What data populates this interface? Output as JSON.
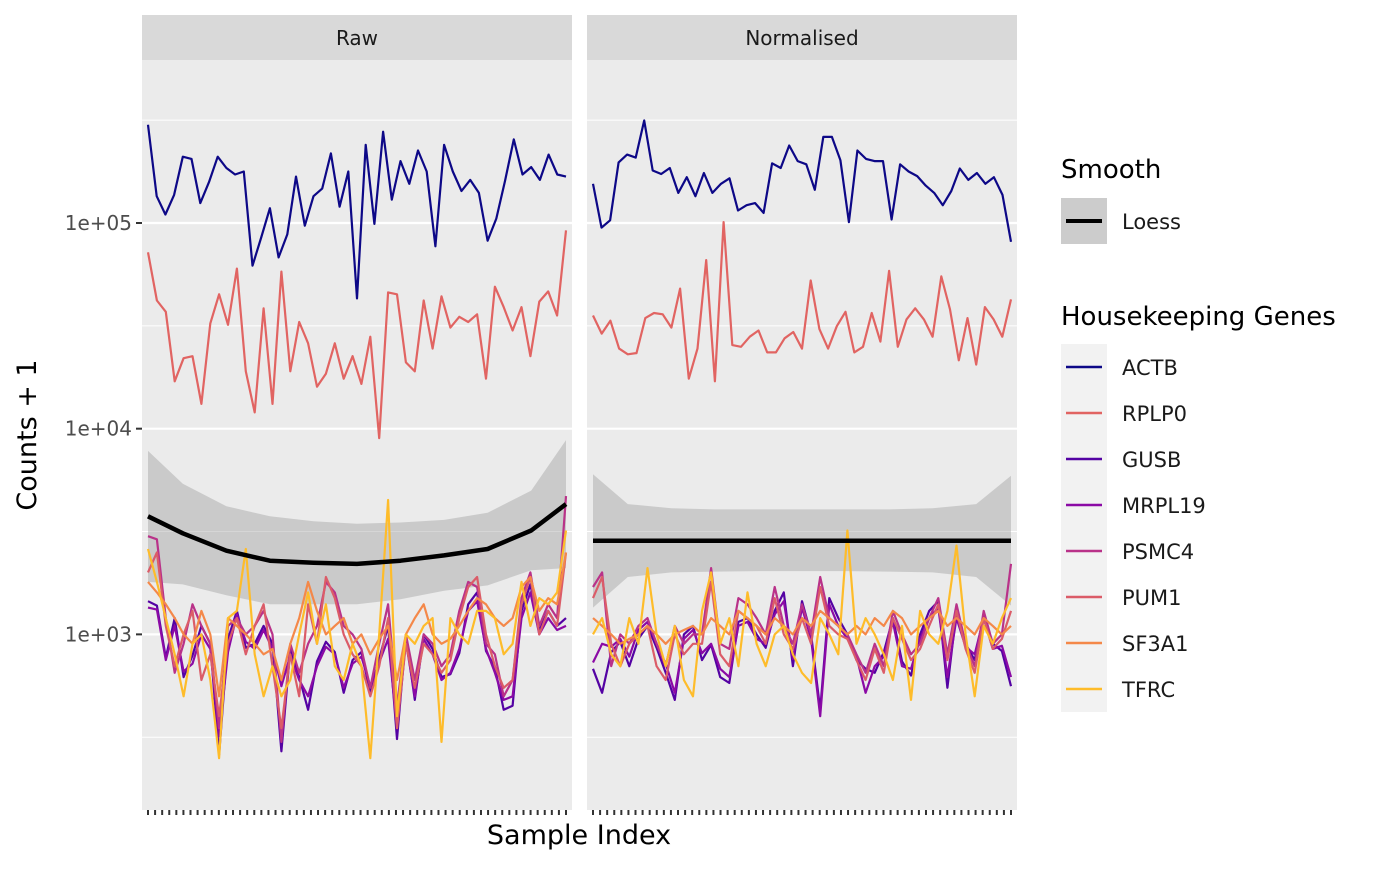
{
  "chart_data": {
    "type": "line",
    "facets": [
      "Raw",
      "Normalised"
    ],
    "xlabel": "Sample Index",
    "ylabel": "Counts + 1",
    "y_scale": "log10",
    "ylim": [
      140,
      620000
    ],
    "y_ticks": [
      1000,
      10000,
      100000
    ],
    "y_tick_labels": [
      "1e+03",
      "1e+04",
      "1e+05"
    ],
    "x_range": [
      1,
      60
    ],
    "grid": true,
    "legend_position": "right",
    "smooth_legend": {
      "title": "Smooth",
      "entries": [
        {
          "label": "Loess",
          "color": "#000000"
        }
      ]
    },
    "genes_legend": {
      "title": "Housekeeping Genes"
    },
    "series": [
      {
        "name": "ACTB",
        "color": "#0D0887",
        "raw": [
          300000,
          135000,
          110000,
          137000,
          210000,
          205000,
          125000,
          158000,
          210000,
          185000,
          172000,
          178000,
          62000,
          85000,
          118000,
          68000,
          88000,
          168000,
          97000,
          135000,
          147000,
          218000,
          120000,
          178000,
          43000,
          240000,
          99000,
          278000,
          130000,
          200000,
          155000,
          225000,
          178000,
          77000,
          240000,
          178000,
          143000,
          162000,
          140000,
          82000,
          105000,
          160000,
          255000,
          172000,
          187000,
          162000,
          215000,
          172000,
          168000
        ],
        "normalised": [
          155000,
          95000,
          103000,
          197000,
          215000,
          208000,
          315000,
          180000,
          173000,
          185000,
          140000,
          167000,
          135000,
          175000,
          140000,
          155000,
          165000,
          115000,
          122000,
          125000,
          112000,
          195000,
          185000,
          238000,
          200000,
          193000,
          145000,
          262000,
          262000,
          202000,
          101000,
          225000,
          205000,
          200000,
          200000,
          104000,
          193000,
          178000,
          169000,
          152000,
          140000,
          122000,
          143000,
          184000,
          162000,
          175000,
          155000,
          167000,
          137000,
          81000
        ]
      },
      {
        "name": "RPLP0",
        "color": "#E16462",
        "raw": [
          72000,
          42000,
          37000,
          17000,
          22000,
          22500,
          13200,
          32500,
          45000,
          32000,
          60000,
          19000,
          12000,
          38500,
          13200,
          58000,
          19000,
          33000,
          26000,
          16000,
          18500,
          26000,
          17500,
          22500,
          16500,
          28000,
          9000,
          46000,
          45000,
          21000,
          19000,
          42000,
          24500,
          44000,
          31000,
          35000,
          33000,
          36000,
          17500,
          49000,
          39000,
          30000,
          39000,
          22500,
          41500,
          46500,
          35500,
          92000
        ],
        "normalised": [
          35500,
          29000,
          33500,
          24500,
          23000,
          23300,
          34500,
          36500,
          36000,
          31000,
          48000,
          17500,
          24500,
          66000,
          17000,
          101000,
          25500,
          25000,
          28000,
          30000,
          23500,
          23500,
          27500,
          29500,
          24500,
          52500,
          30500,
          24500,
          31500,
          37000,
          23500,
          25000,
          36500,
          26500,
          58500,
          25000,
          34000,
          38500,
          34000,
          28000,
          55000,
          38000,
          21500,
          34500,
          20500,
          39000,
          34000,
          28000,
          42500
        ]
      },
      {
        "name": "GUSB",
        "color": "#5402A3",
        "raw": [
          1450,
          1380,
          770,
          1200,
          620,
          790,
          1100,
          900,
          260,
          950,
          1300,
          860,
          900,
          1100,
          900,
          270,
          850,
          620,
          430,
          740,
          920,
          820,
          520,
          750,
          820,
          520,
          760,
          1100,
          310,
          980,
          480,
          1000,
          850,
          620,
          640,
          810,
          1400,
          1600,
          830,
          690,
          430,
          450,
          1300,
          1750,
          1050,
          1300,
          1100,
          1200
        ],
        "normalised": [
          680,
          520,
          820,
          920,
          700,
          950,
          1100,
          860,
          650,
          480,
          1000,
          1100,
          750,
          890,
          620,
          580,
          1150,
          1200,
          1000,
          860,
          1300,
          1600,
          700,
          1450,
          1000,
          430,
          1500,
          1200,
          1000,
          750,
          680,
          650,
          820,
          1200,
          740,
          630,
          1000,
          1300,
          1450,
          550,
          1300,
          900,
          750,
          1250,
          900,
          830,
          560
        ]
      },
      {
        "name": "MRPL19",
        "color": "#8B0AA5",
        "raw": [
          1350,
          1320,
          750,
          1100,
          660,
          720,
          1000,
          850,
          320,
          820,
          1250,
          920,
          850,
          1050,
          850,
          560,
          790,
          600,
          500,
          700,
          870,
          800,
          550,
          720,
          780,
          560,
          730,
          950,
          350,
          920,
          500,
          950,
          800,
          600,
          650,
          850,
          1300,
          1450,
          850,
          650,
          480,
          500,
          1200,
          1600,
          1000,
          1200,
          1050,
          1100
        ],
        "normalised": [
          730,
          900,
          870,
          950,
          780,
          1050,
          1150,
          900,
          720,
          520,
          950,
          1050,
          810,
          900,
          680,
          620,
          1100,
          1150,
          950,
          900,
          1250,
          1450,
          760,
          1350,
          950,
          400,
          1400,
          1100,
          950,
          780,
          520,
          700,
          780,
          1150,
          700,
          680,
          950,
          1200,
          1350,
          620,
          1200,
          870,
          800,
          1200,
          850,
          880,
          620
        ]
      },
      {
        "name": "PSMC4",
        "color": "#B93289",
        "raw": [
          3000,
          2900,
          1200,
          650,
          900,
          1400,
          1100,
          900,
          350,
          1100,
          1200,
          1000,
          1100,
          1300,
          1000,
          300,
          900,
          650,
          900,
          1100,
          1800,
          1600,
          1100,
          1000,
          850,
          550,
          900,
          1400,
          450,
          1000,
          600,
          1000,
          900,
          700,
          800,
          1300,
          1800,
          1700,
          900,
          800,
          500,
          600,
          1500,
          2000,
          1100,
          1400,
          1200,
          4700
        ],
        "normalised": [
          1700,
          2000,
          700,
          1000,
          900,
          1100,
          1200,
          900,
          700,
          1100,
          900,
          1000,
          1000,
          2100,
          900,
          850,
          1500,
          1400,
          1200,
          1000,
          1700,
          1100,
          900,
          1400,
          1000,
          1900,
          1200,
          1100,
          1000,
          800,
          650,
          900,
          700,
          1300,
          1000,
          800,
          900,
          1200,
          1500,
          800,
          1400,
          900,
          700,
          1300,
          900,
          1000,
          2200
        ]
      },
      {
        "name": "PUM1",
        "color": "#DB5C68",
        "raw": [
          2000,
          2500,
          1100,
          700,
          1000,
          1300,
          600,
          800,
          400,
          900,
          1200,
          800,
          1100,
          1400,
          700,
          350,
          800,
          500,
          1400,
          900,
          1900,
          1500,
          1000,
          800,
          700,
          500,
          700,
          1200,
          350,
          900,
          550,
          900,
          800,
          650,
          750,
          1200,
          1700,
          1900,
          1000,
          700,
          550,
          600,
          1400,
          1900,
          1000,
          1300,
          1100,
          2500
        ],
        "normalised": [
          1500,
          1900,
          900,
          700,
          900,
          1000,
          1100,
          700,
          600,
          1000,
          800,
          900,
          900,
          1800,
          800,
          700,
          1300,
          1200,
          1100,
          900,
          1500,
          1000,
          850,
          1200,
          900,
          1700,
          1100,
          1000,
          950,
          750,
          600,
          850,
          650,
          1200,
          950,
          750,
          850,
          1100,
          1400,
          750,
          1300,
          850,
          650,
          1200,
          850,
          950,
          1300
        ]
      },
      {
        "name": "SF3A1",
        "color": "#F48849",
        "raw": [
          1800,
          1600,
          1400,
          1200,
          1000,
          900,
          1300,
          1000,
          500,
          1200,
          1100,
          1000,
          900,
          800,
          850,
          600,
          900,
          1200,
          1800,
          1300,
          1000,
          1100,
          1200,
          900,
          1000,
          800,
          950,
          1100,
          600,
          1000,
          1200,
          1400,
          1000,
          900,
          950,
          1100,
          1300,
          1500,
          1400,
          1200,
          1100,
          1200,
          1700,
          1900,
          1300,
          1500,
          1400,
          2500
        ],
        "normalised": [
          1200,
          1100,
          1000,
          900,
          950,
          1000,
          1100,
          1000,
          900,
          1000,
          1050,
          1100,
          1000,
          1200,
          1100,
          1000,
          1300,
          1200,
          1100,
          1000,
          1200,
          1100,
          1000,
          1200,
          1100,
          1300,
          1200,
          1100,
          1000,
          1100,
          1000,
          1200,
          1100,
          1300,
          1200,
          1000,
          1100,
          1200,
          1300,
          1100,
          1200,
          1100,
          1000,
          1200,
          1100,
          1000,
          1100
        ]
      },
      {
        "name": "TFRC",
        "color": "#FEBC2A",
        "raw": [
          2600,
          1800,
          1200,
          800,
          500,
          900,
          1000,
          600,
          250,
          1200,
          1300,
          2600,
          800,
          500,
          700,
          500,
          600,
          1000,
          1600,
          900,
          1400,
          700,
          600,
          900,
          700,
          250,
          1000,
          4500,
          400,
          1000,
          900,
          1100,
          1200,
          300,
          1200,
          1000,
          900,
          1300,
          1300,
          1200,
          800,
          900,
          1800,
          1100,
          1500,
          1400,
          1600,
          3200
        ],
        "normalised": [
          1000,
          1200,
          800,
          700,
          1200,
          900,
          2100,
          1000,
          700,
          1100,
          600,
          500,
          1300,
          2000,
          900,
          1200,
          700,
          1600,
          900,
          700,
          1000,
          1100,
          800,
          650,
          580,
          1200,
          1000,
          800,
          3200,
          900,
          1200,
          1000,
          800,
          600,
          1100,
          480,
          1300,
          1000,
          900,
          1300,
          2700,
          1000,
          500,
          1100,
          900,
          1200,
          1500
        ]
      }
    ],
    "loess": {
      "name": "Loess",
      "raw": {
        "x": [
          1,
          5,
          10,
          15,
          20,
          25,
          30,
          35,
          40,
          45,
          49
        ],
        "y": [
          3750,
          3100,
          2550,
          2280,
          2230,
          2200,
          2280,
          2420,
          2600,
          3200,
          4300
        ],
        "ci_upper": [
          7800,
          5400,
          4200,
          3750,
          3550,
          3450,
          3500,
          3600,
          3900,
          5000,
          8800
        ],
        "ci_lower": [
          1800,
          1750,
          1550,
          1400,
          1400,
          1400,
          1480,
          1630,
          1730,
          2050,
          2100
        ]
      },
      "normalised": {
        "x": [
          1,
          5,
          10,
          15,
          20,
          25,
          30,
          35,
          40,
          45,
          49
        ],
        "y": [
          2850,
          2850,
          2850,
          2850,
          2850,
          2850,
          2850,
          2850,
          2850,
          2850,
          2850
        ],
        "ci_upper": [
          6000,
          4300,
          4100,
          4050,
          4050,
          4050,
          4050,
          4050,
          4100,
          4300,
          5900
        ],
        "ci_lower": [
          1350,
          1900,
          2000,
          2020,
          2030,
          2030,
          2030,
          2020,
          2000,
          1900,
          1380
        ]
      }
    }
  }
}
